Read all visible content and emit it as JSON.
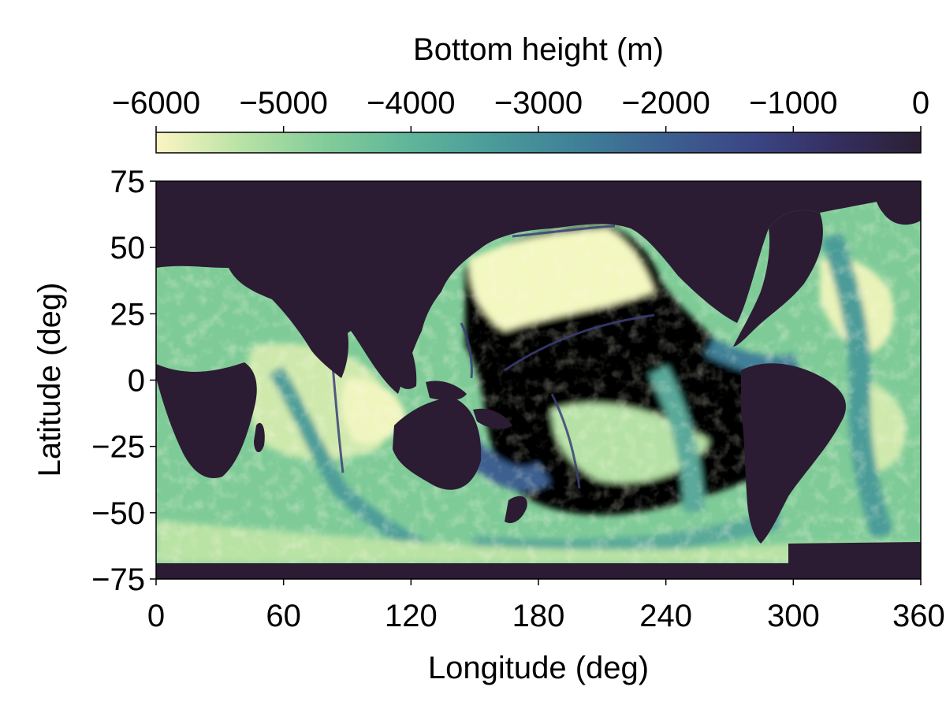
{
  "chart_data": {
    "type": "heatmap",
    "title": "",
    "xlabel": "Longitude (deg)",
    "ylabel": "Latitude (deg)",
    "xlim": [
      0,
      360
    ],
    "ylim": [
      -75,
      75
    ],
    "x_ticks": [
      {
        "value": 0,
        "label": "0"
      },
      {
        "value": 60,
        "label": "60"
      },
      {
        "value": 120,
        "label": "120"
      },
      {
        "value": 180,
        "label": "180"
      },
      {
        "value": 240,
        "label": "240"
      },
      {
        "value": 300,
        "label": "300"
      },
      {
        "value": 360,
        "label": "360"
      }
    ],
    "y_ticks": [
      {
        "value": 75,
        "label": "75"
      },
      {
        "value": 50,
        "label": "50"
      },
      {
        "value": 25,
        "label": "25"
      },
      {
        "value": 0,
        "label": "0"
      },
      {
        "value": -25,
        "label": "−25"
      },
      {
        "value": -50,
        "label": "−50"
      },
      {
        "value": -75,
        "label": "−75"
      }
    ],
    "grid": false,
    "colorbar": {
      "label": "Bottom height (m)",
      "placement": "top",
      "range": [
        -6000,
        0
      ],
      "ticks": [
        {
          "value": -6000,
          "label": "−6000"
        },
        {
          "value": -5000,
          "label": "−5000"
        },
        {
          "value": -4000,
          "label": "−4000"
        },
        {
          "value": -3000,
          "label": "−3000"
        },
        {
          "value": -2000,
          "label": "−2000"
        },
        {
          "value": -1000,
          "label": "−1000"
        },
        {
          "value": 0,
          "label": "0"
        }
      ],
      "colormap": [
        "#fcf5c4",
        "#b9e2a5",
        "#82cc9a",
        "#5fb59a",
        "#4a9a9a",
        "#3f7f97",
        "#3c6090",
        "#3b4685",
        "#352f60",
        "#2b1f35"
      ]
    },
    "land_color": "#2b1b33",
    "data_description_visible": "Global ocean bathymetry field; land rendered at 0 m (darkest colour), deep basins near −6000 m (lightest colour)"
  }
}
